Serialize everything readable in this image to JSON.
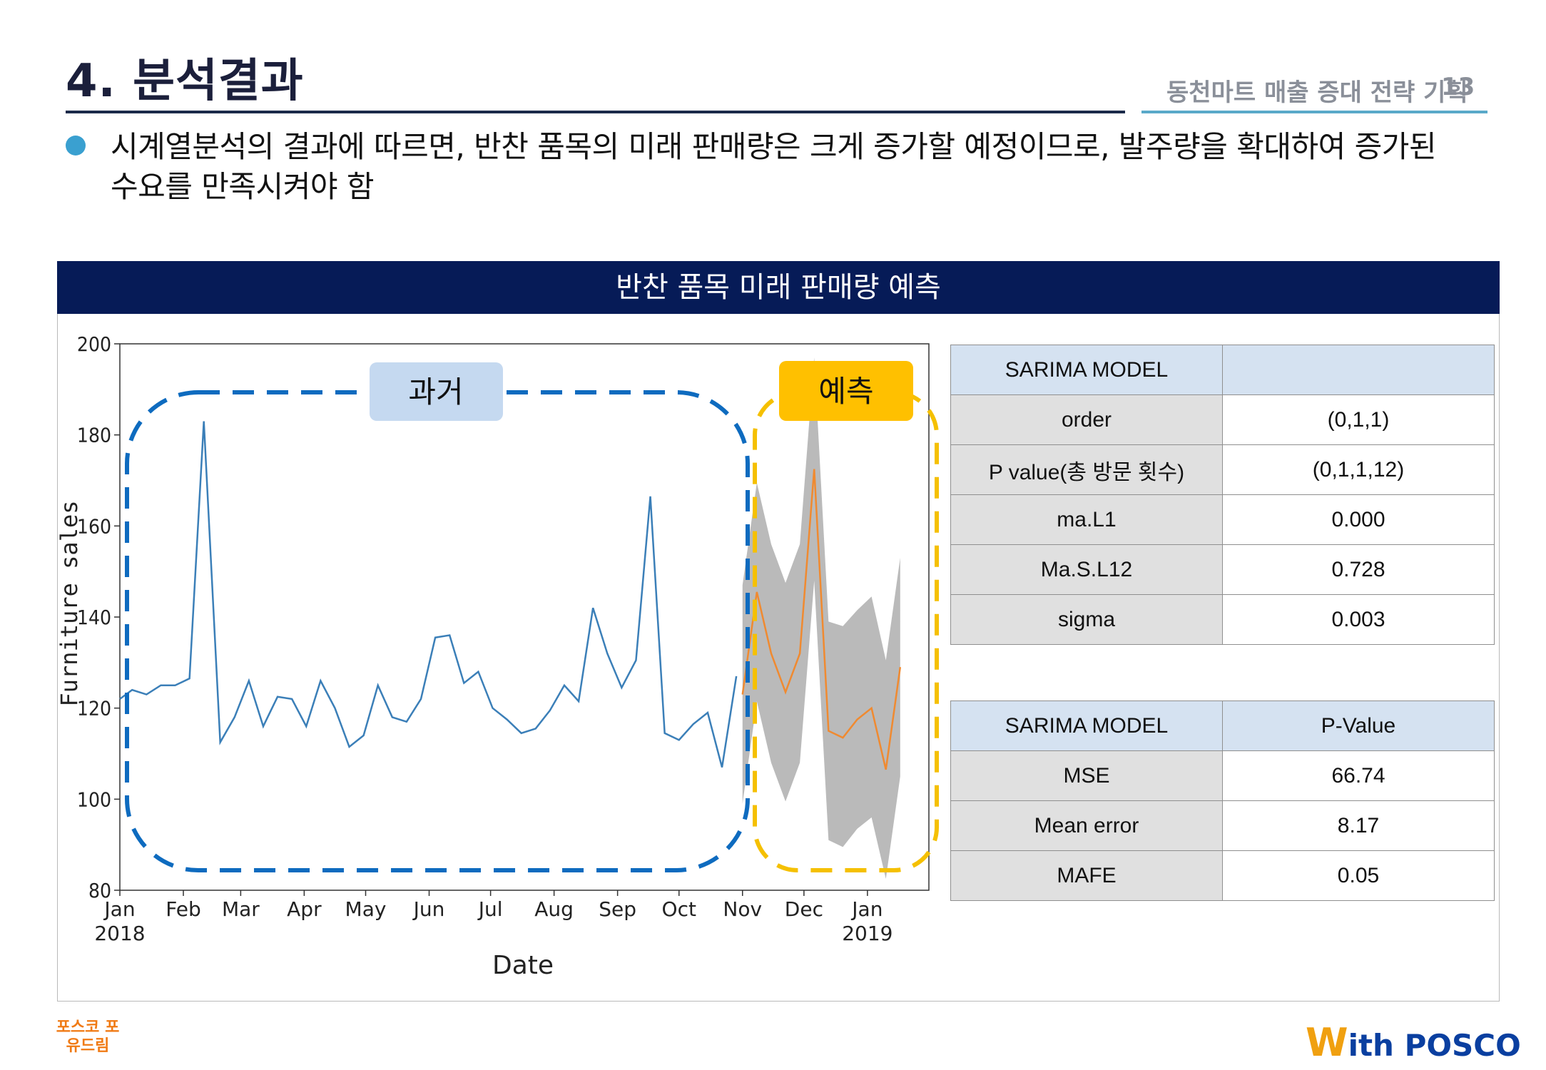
{
  "header": {
    "title": "4. 분석결과",
    "subtitle": "동천마트 매출 증대 전략 기획",
    "page_number": "13"
  },
  "bullet_text": "시계열분석의 결과에 따르면, 반찬 품목의 미래 판매량은 크게 증가할 예정이므로, 발주량을 확대하여 증가된 수요를 만족시켜야 함",
  "panel_title": "반찬 품목 미래 판매량 예측",
  "annotations": {
    "past": "과거",
    "forecast": "예측"
  },
  "colors": {
    "header_bg": "#061b57",
    "past_line": "#3b7fb8",
    "forecast_line": "#f08a30",
    "ci_band": "#a9a9a9",
    "past_box": "#0e6bbf",
    "forecast_box": "#f5c000",
    "past_label_bg": "#c5d9f0",
    "forecast_label_bg": "#ffc000"
  },
  "chart_data": {
    "type": "line",
    "xlabel": "Date",
    "ylabel": "Furniture sales",
    "ylim": [
      80,
      200
    ],
    "yticks": [
      80,
      100,
      120,
      140,
      160,
      180,
      200
    ],
    "xlim": [
      "2018-01-01",
      "2019-01-31"
    ],
    "xticks": [
      {
        "date": "2018-01-01",
        "label": "Jan",
        "sub": "2018"
      },
      {
        "date": "2018-02-01",
        "label": "Feb",
        "sub": ""
      },
      {
        "date": "2018-03-01",
        "label": "Mar",
        "sub": ""
      },
      {
        "date": "2018-04-01",
        "label": "Apr",
        "sub": ""
      },
      {
        "date": "2018-05-01",
        "label": "May",
        "sub": ""
      },
      {
        "date": "2018-06-01",
        "label": "Jun",
        "sub": ""
      },
      {
        "date": "2018-07-01",
        "label": "Jul",
        "sub": ""
      },
      {
        "date": "2018-08-01",
        "label": "Aug",
        "sub": ""
      },
      {
        "date": "2018-09-01",
        "label": "Sep",
        "sub": ""
      },
      {
        "date": "2018-10-01",
        "label": "Oct",
        "sub": ""
      },
      {
        "date": "2018-11-01",
        "label": "Nov",
        "sub": ""
      },
      {
        "date": "2018-12-01",
        "label": "Dec",
        "sub": ""
      },
      {
        "date": "2019-01-01",
        "label": "Jan",
        "sub": "2019"
      }
    ],
    "series": [
      {
        "type": "observed",
        "points": [
          [
            "2018-01-01",
            122
          ],
          [
            "2018-01-07",
            124
          ],
          [
            "2018-01-14",
            123
          ],
          [
            "2018-01-21",
            125
          ],
          [
            "2018-01-28",
            125
          ],
          [
            "2018-02-04",
            126.5
          ],
          [
            "2018-02-11",
            183
          ],
          [
            "2018-02-19",
            112.5
          ],
          [
            "2018-02-26",
            118
          ],
          [
            "2018-03-05",
            126
          ],
          [
            "2018-03-12",
            116
          ],
          [
            "2018-03-19",
            122.5
          ],
          [
            "2018-03-26",
            122
          ],
          [
            "2018-04-02",
            116
          ],
          [
            "2018-04-09",
            126
          ],
          [
            "2018-04-16",
            120
          ],
          [
            "2018-04-23",
            111.5
          ],
          [
            "2018-04-30",
            114
          ],
          [
            "2018-05-07",
            125
          ],
          [
            "2018-05-14",
            118
          ],
          [
            "2018-05-21",
            117
          ],
          [
            "2018-05-28",
            122
          ],
          [
            "2018-06-04",
            135.5
          ],
          [
            "2018-06-11",
            136
          ],
          [
            "2018-06-18",
            125.5
          ],
          [
            "2018-06-25",
            128
          ],
          [
            "2018-07-02",
            120
          ],
          [
            "2018-07-09",
            117.5
          ],
          [
            "2018-07-16",
            114.5
          ],
          [
            "2018-07-23",
            115.5
          ],
          [
            "2018-07-30",
            119.5
          ],
          [
            "2018-08-06",
            125
          ],
          [
            "2018-08-13",
            121.5
          ],
          [
            "2018-08-20",
            142
          ],
          [
            "2018-08-27",
            132
          ],
          [
            "2018-09-03",
            124.5
          ],
          [
            "2018-09-10",
            130.5
          ],
          [
            "2018-09-17",
            166.5
          ],
          [
            "2018-09-24",
            114.5
          ],
          [
            "2018-10-01",
            113
          ],
          [
            "2018-10-08",
            116.5
          ],
          [
            "2018-10-15",
            119
          ],
          [
            "2018-10-22",
            107
          ],
          [
            "2018-10-29",
            127
          ]
        ]
      },
      {
        "type": "forecast",
        "points": [
          [
            "2018-11-01",
            123
          ],
          [
            "2018-11-08",
            145.5
          ],
          [
            "2018-11-15",
            132
          ],
          [
            "2018-11-22",
            123.5
          ],
          [
            "2018-11-29",
            132
          ],
          [
            "2018-12-06",
            172.5
          ],
          [
            "2018-12-13",
            115
          ],
          [
            "2018-12-20",
            113.5
          ],
          [
            "2018-12-27",
            117.5
          ],
          [
            "2019-01-03",
            120
          ],
          [
            "2019-01-10",
            106.5
          ],
          [
            "2019-01-17",
            129
          ]
        ],
        "upper": [
          147,
          169.5,
          156,
          147.5,
          156,
          197,
          139,
          138,
          141.5,
          144.5,
          130.5,
          153
        ],
        "lower": [
          99,
          121.5,
          108,
          99.5,
          108,
          148,
          91,
          89.5,
          93.5,
          96,
          82.5,
          105
        ]
      }
    ]
  },
  "table1": {
    "header": [
      "SARIMA MODEL",
      ""
    ],
    "rows": [
      [
        "order",
        "(0,1,1)"
      ],
      [
        "P value(총 방문 횟수)",
        "(0,1,1,12)"
      ],
      [
        "ma.L1",
        "0.000"
      ],
      [
        "Ma.S.L12",
        "0.728"
      ],
      [
        "sigma",
        "0.003"
      ]
    ]
  },
  "table2": {
    "header": [
      "SARIMA MODEL",
      "P-Value"
    ],
    "rows": [
      [
        "MSE",
        "66.74"
      ],
      [
        "Mean error",
        "8.17"
      ],
      [
        "MAFE",
        "0.05"
      ]
    ]
  },
  "footer": {
    "left_logo": "포스코 포유드림",
    "right_logo_w": "W",
    "right_logo_text": "ith POSCO"
  }
}
